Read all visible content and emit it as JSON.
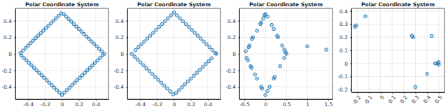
{
  "chart_data": [
    {
      "type": "scatter",
      "title": "Polar Coordinate System",
      "color": "#1f77b4",
      "marker": "circle",
      "grid": true,
      "xlim": [
        -0.55,
        0.55
      ],
      "ylim": [
        -0.55,
        0.55
      ],
      "xticks": [
        -0.4,
        -0.2,
        0,
        0.2,
        0.4
      ],
      "yticks": [
        -0.4,
        -0.2,
        0,
        0.2,
        0.4
      ],
      "x": [
        0.5,
        0.47,
        0.44,
        0.41,
        0.38,
        0.35,
        0.32,
        0.29,
        0.26,
        0.23,
        0.2,
        0.17,
        0.14,
        0.11,
        0.08,
        0.05,
        0.02,
        -0.01,
        -0.04,
        -0.07,
        -0.1,
        -0.13,
        -0.16,
        -0.19,
        -0.22,
        -0.25,
        -0.28,
        -0.31,
        -0.34,
        -0.37,
        -0.4,
        -0.43,
        -0.46,
        -0.49,
        -0.48,
        -0.45,
        -0.42,
        -0.39,
        -0.36,
        -0.33,
        -0.3,
        -0.27,
        -0.24,
        -0.21,
        -0.18,
        -0.15,
        -0.12,
        -0.09,
        -0.06,
        -0.03,
        0.0,
        0.03,
        0.06,
        0.09,
        0.12,
        0.15,
        0.18,
        0.21,
        0.24,
        0.27,
        0.3,
        0.33,
        0.36,
        0.39,
        0.42,
        0.45,
        0.48
      ],
      "y": [
        0.0,
        0.03,
        0.06,
        0.09,
        0.12,
        0.15,
        0.18,
        0.21,
        0.24,
        0.27,
        0.3,
        0.33,
        0.36,
        0.39,
        0.42,
        0.45,
        0.48,
        0.49,
        0.46,
        0.43,
        0.4,
        0.37,
        0.34,
        0.31,
        0.28,
        0.25,
        0.22,
        0.19,
        0.16,
        0.13,
        0.1,
        0.07,
        0.04,
        0.01,
        -0.02,
        -0.05,
        -0.08,
        -0.11,
        -0.14,
        -0.17,
        -0.2,
        -0.23,
        -0.26,
        -0.29,
        -0.32,
        -0.35,
        -0.38,
        -0.41,
        -0.44,
        -0.47,
        -0.5,
        -0.47,
        -0.44,
        -0.41,
        -0.38,
        -0.35,
        -0.32,
        -0.29,
        -0.26,
        -0.23,
        -0.2,
        -0.17,
        -0.14,
        -0.11,
        -0.08,
        -0.05,
        -0.02
      ]
    },
    {
      "type": "scatter",
      "title": "Polar Coordinate System",
      "color": "#1f77b4",
      "marker": "circle",
      "grid": true,
      "xlim": [
        -0.55,
        0.55
      ],
      "ylim": [
        -0.55,
        0.55
      ],
      "xticks": [
        -0.4,
        -0.2,
        0,
        0.2,
        0.4
      ],
      "yticks": [
        -0.4,
        -0.2,
        0,
        0.2,
        0.4
      ],
      "x": [
        0.49,
        0.455,
        0.42,
        0.385,
        0.35,
        0.315,
        0.28,
        0.245,
        0.21,
        0.175,
        0.14,
        0.105,
        0.07,
        0.035,
        0.0,
        -0.035,
        -0.07,
        -0.105,
        -0.14,
        -0.175,
        -0.21,
        -0.245,
        -0.28,
        -0.315,
        -0.35,
        -0.385,
        -0.42,
        -0.455,
        -0.5,
        -0.465,
        -0.43,
        -0.395,
        -0.36,
        -0.325,
        -0.29,
        -0.255,
        -0.22,
        -0.185,
        -0.15,
        -0.115,
        -0.08,
        -0.045,
        -0.01,
        0.025,
        0.06,
        0.095,
        0.13,
        0.165,
        0.2,
        0.235,
        0.27,
        0.305,
        0.34,
        0.375,
        0.41,
        0.445,
        0.5
      ],
      "y": [
        0.01,
        0.045,
        0.08,
        0.115,
        0.15,
        0.185,
        0.22,
        0.255,
        0.29,
        0.325,
        0.36,
        0.395,
        0.43,
        0.465,
        0.5,
        0.465,
        0.43,
        0.395,
        0.36,
        0.325,
        0.29,
        0.255,
        0.22,
        0.185,
        0.15,
        0.115,
        0.08,
        0.045,
        0.0,
        -0.035,
        -0.07,
        -0.105,
        -0.14,
        -0.175,
        -0.21,
        -0.245,
        -0.28,
        -0.315,
        -0.35,
        -0.385,
        -0.42,
        -0.455,
        -0.49,
        -0.475,
        -0.44,
        -0.405,
        -0.37,
        -0.335,
        -0.3,
        -0.265,
        -0.23,
        -0.195,
        -0.16,
        -0.125,
        -0.09,
        -0.055,
        0.0
      ]
    },
    {
      "type": "scatter",
      "title": "Polar Coordinate System",
      "color": "#1f77b4",
      "marker": "circle",
      "grid": true,
      "xlim": [
        -0.62,
        1.6
      ],
      "ylim": [
        -0.55,
        0.55
      ],
      "xticks": [
        -0.5,
        0,
        0.5,
        1,
        1.5
      ],
      "yticks": [
        -0.4,
        -0.2,
        0,
        0.2,
        0.4
      ],
      "x": [
        0.0,
        -0.02,
        -0.05,
        -0.1,
        -0.12,
        -0.2,
        -0.3,
        -0.32,
        -0.38,
        -0.4,
        -0.47,
        0.5,
        0.48,
        0.45,
        0.4,
        0.3,
        0.28,
        0.2,
        0.15,
        0.05,
        -0.45,
        -0.42,
        -0.35,
        -0.33,
        -0.25,
        -0.2,
        -0.1,
        -0.08,
        0.0,
        0.05,
        0.1,
        0.2,
        0.22,
        0.35,
        0.45,
        1.0,
        1.45
      ],
      "y": [
        0.48,
        0.47,
        0.43,
        0.38,
        0.36,
        0.28,
        0.2,
        0.18,
        0.1,
        0.08,
        0.03,
        0.0,
        0.02,
        0.05,
        0.1,
        0.2,
        0.22,
        0.3,
        0.35,
        0.45,
        -0.05,
        -0.08,
        -0.15,
        -0.17,
        -0.25,
        -0.3,
        -0.4,
        -0.42,
        -0.5,
        -0.45,
        -0.4,
        -0.3,
        -0.28,
        -0.15,
        -0.05,
        0.09,
        0.05
      ]
    },
    {
      "type": "scatter",
      "title": "Polar Coordinate System",
      "color": "#1f77b4",
      "marker": "circle",
      "grid": true,
      "xlim": [
        -0.25,
        0.55
      ],
      "ylim": [
        -0.22,
        0.42
      ],
      "xticks": [
        -0.2,
        -0.1,
        0,
        0.1,
        0.2,
        0.3,
        0.4,
        0.5
      ],
      "yticks": [
        -0.2,
        -0.1,
        0,
        0.1,
        0.2,
        0.3,
        0.4
      ],
      "x": [
        -0.22,
        -0.21,
        -0.13,
        0.27,
        0.28,
        0.3,
        0.4,
        0.44,
        0.47,
        0.49,
        0.5,
        0.5
      ],
      "y": [
        0.28,
        0.29,
        0.36,
        0.21,
        0.2,
        -0.18,
        -0.08,
        0.21,
        0.0,
        0.0,
        0.01,
        -0.01
      ]
    }
  ]
}
